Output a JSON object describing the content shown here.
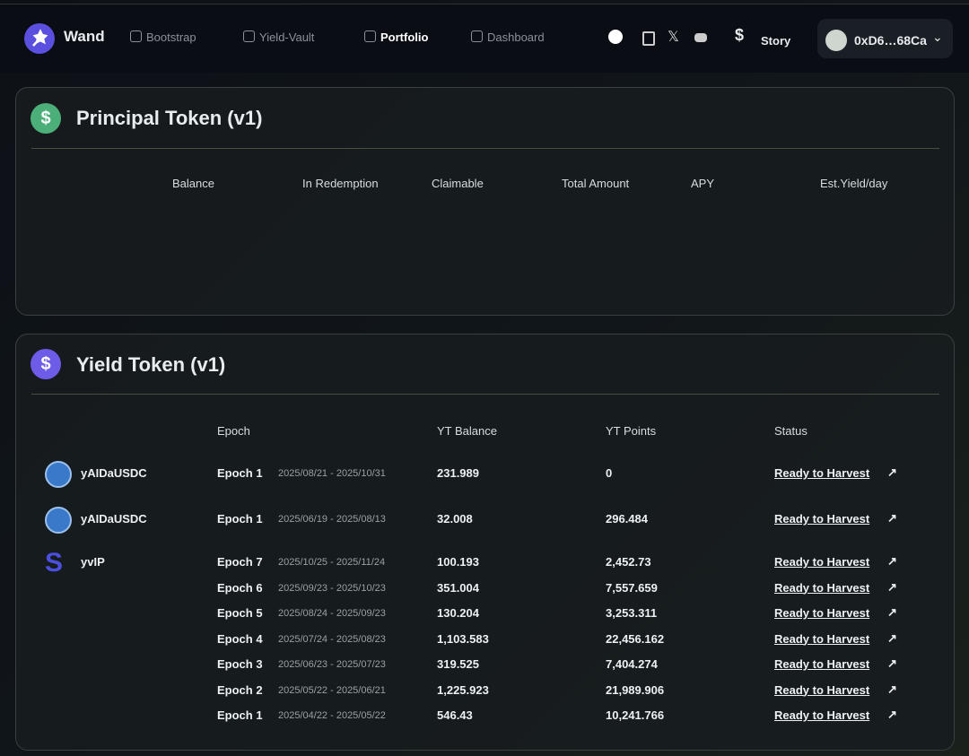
{
  "nav": {
    "brand": "Wand",
    "links": [
      "Bootstrap",
      "Yield-Vault",
      "Portfolio",
      "Dashboard"
    ],
    "network": "Story",
    "wallet": "0xD6…68Ca"
  },
  "principal": {
    "title": "Principal Token (v1)",
    "columns": [
      "Balance",
      "In Redemption",
      "Claimable",
      "Total Amount",
      "APY",
      "Est.Yield/day"
    ]
  },
  "yield": {
    "title": "Yield Token (v1)",
    "columns": [
      "Epoch",
      "YT Balance",
      "YT Points",
      "Status"
    ],
    "groups": [
      {
        "token": "yAIDaUSDC",
        "rows": [
          {
            "epoch": "Epoch 1",
            "dates": "2025/08/21 - 2025/10/31",
            "balance": "231.989",
            "points": "0",
            "status": "Ready to Harvest"
          }
        ]
      },
      {
        "token": "yAIDaUSDC",
        "rows": [
          {
            "epoch": "Epoch 1",
            "dates": "2025/06/19 - 2025/08/13",
            "balance": "32.008",
            "points": "296.484",
            "status": "Ready to Harvest"
          }
        ]
      },
      {
        "token": "yvIP",
        "rows": [
          {
            "epoch": "Epoch 7",
            "dates": "2025/10/25 - 2025/11/24",
            "balance": "100.193",
            "points": "2,452.73",
            "status": "Ready to Harvest"
          },
          {
            "epoch": "Epoch 6",
            "dates": "2025/09/23 - 2025/10/23",
            "balance": "351.004",
            "points": "7,557.659",
            "status": "Ready to Harvest"
          },
          {
            "epoch": "Epoch 5",
            "dates": "2025/08/24 - 2025/09/23",
            "balance": "130.204",
            "points": "3,253.311",
            "status": "Ready to Harvest"
          },
          {
            "epoch": "Epoch 4",
            "dates": "2025/07/24 - 2025/08/23",
            "balance": "1,103.583",
            "points": "22,456.162",
            "status": "Ready to Harvest"
          },
          {
            "epoch": "Epoch 3",
            "dates": "2025/06/23 - 2025/07/23",
            "balance": "319.525",
            "points": "7,404.274",
            "status": "Ready to Harvest"
          },
          {
            "epoch": "Epoch 2",
            "dates": "2025/05/22 - 2025/06/21",
            "balance": "1,225.923",
            "points": "21,989.906",
            "status": "Ready to Harvest"
          },
          {
            "epoch": "Epoch 1",
            "dates": "2025/04/22 - 2025/05/22",
            "balance": "546.43",
            "points": "10,241.766",
            "status": "Ready to Harvest"
          }
        ]
      }
    ]
  }
}
